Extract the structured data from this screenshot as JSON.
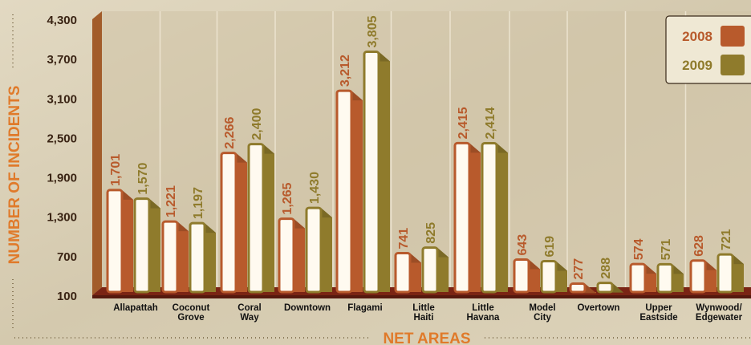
{
  "chart_data": {
    "type": "bar",
    "title": "",
    "xlabel": "NET AREAS",
    "ylabel": "NUMBER OF INCIDENTS",
    "ylim": [
      100,
      4300
    ],
    "yticks": [
      "4,300",
      "3,700",
      "3,100",
      "2,500",
      "1,900",
      "1,300",
      "700",
      "100"
    ],
    "categories": [
      [
        "Allapattah"
      ],
      [
        "Coconut",
        "Grove"
      ],
      [
        "Coral",
        "Way"
      ],
      [
        "Downtown"
      ],
      [
        "Flagami"
      ],
      [
        "Little",
        "Haiti"
      ],
      [
        "Little",
        "Havana"
      ],
      [
        "Model",
        "City"
      ],
      [
        "Overtown"
      ],
      [
        "Upper",
        "Eastside"
      ],
      [
        "Wynwood/",
        "Edgewater"
      ]
    ],
    "series": [
      {
        "name": "2008",
        "color": "#b85a2c",
        "values": [
          1701,
          1221,
          2266,
          1265,
          3212,
          741,
          2415,
          643,
          277,
          574,
          628
        ],
        "labels": [
          "1,701",
          "1,221",
          "2,266",
          "1,265",
          "3,212",
          "741",
          "2,415",
          "643",
          "277",
          "574",
          "628"
        ]
      },
      {
        "name": "2009",
        "color": "#8f7b2c",
        "values": [
          1570,
          1197,
          2400,
          1430,
          3805,
          825,
          2414,
          619,
          288,
          571,
          721
        ],
        "labels": [
          "1,570",
          "1,197",
          "2,400",
          "1,430",
          "3,805",
          "825",
          "2,414",
          "619",
          "288",
          "571",
          "721"
        ]
      }
    ],
    "grid": false,
    "legend_position": "top-right",
    "colors": {
      "background": "#d9cfb6",
      "wall": "#b4662f",
      "floor": "#7a2414",
      "bar_face": "#fffaf0",
      "axis_label": "#e07a2a",
      "tick_text": "#3a2414"
    }
  }
}
